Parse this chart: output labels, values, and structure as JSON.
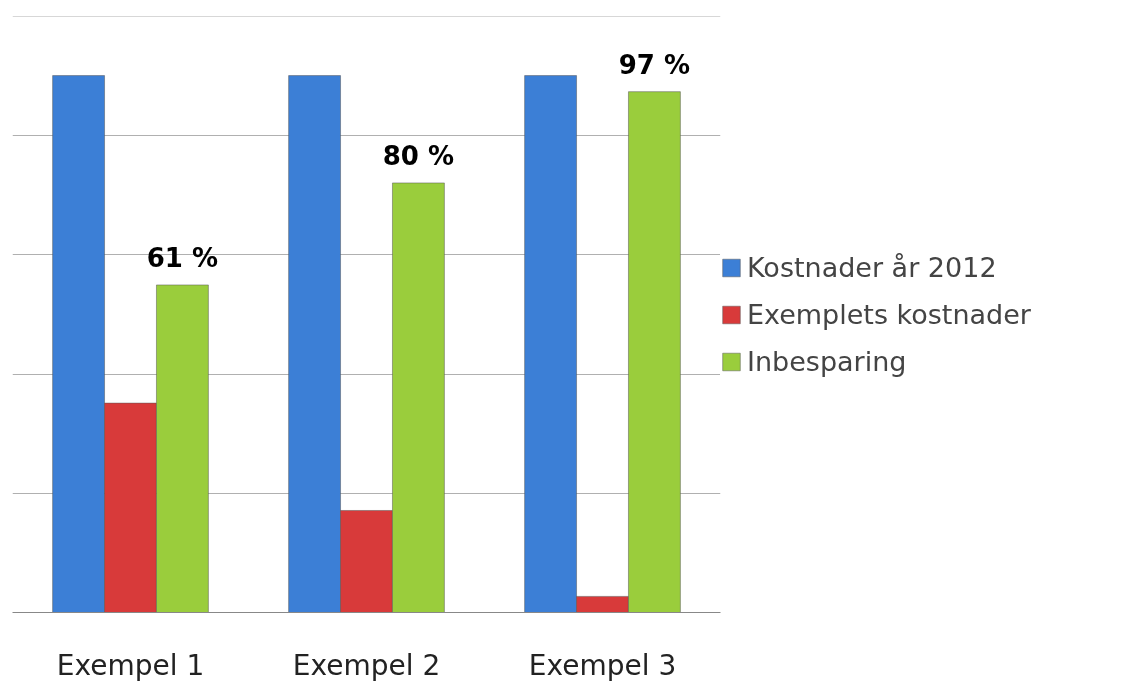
{
  "chart_data": {
    "type": "bar",
    "categories": [
      "Exempel 1",
      "Exempel 2",
      "Exempel 3"
    ],
    "series": [
      {
        "name": "Kostnader år 2012",
        "color": "#3c7fd6",
        "values": [
          100,
          100,
          100
        ]
      },
      {
        "name": "Exemplets kostnader",
        "color": "#d83a3a",
        "values": [
          39,
          19,
          3
        ]
      },
      {
        "name": "Inbesparing",
        "color": "#9acd3c",
        "values": [
          61,
          80,
          97
        ],
        "value_labels": [
          "61 %",
          "80 %",
          "97 %"
        ]
      }
    ],
    "grid": "y",
    "legend": "right",
    "tick_labels": "x"
  }
}
